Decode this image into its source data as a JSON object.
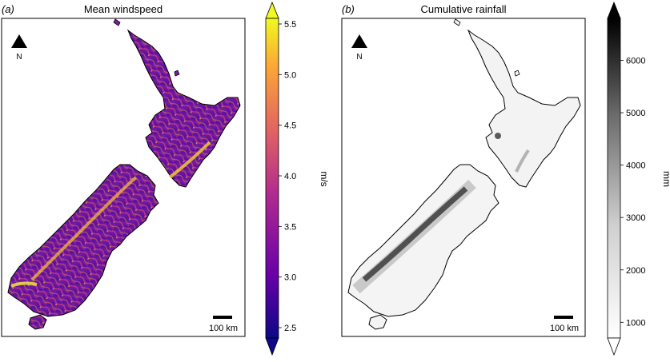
{
  "panel_a": {
    "label": "(a)",
    "title": "Mean windspeed",
    "north_label": "N",
    "scalebar_label": "100 km",
    "colorbar": {
      "unit": "m/s",
      "ticks": [
        "2.5",
        "3.0",
        "3.5",
        "4.0",
        "4.5",
        "5.0",
        "5.5"
      ],
      "range": [
        2.5,
        5.5
      ],
      "colormap": "plasma",
      "colors": [
        "#0d0887",
        "#6a00a8",
        "#b12a90",
        "#e16462",
        "#fca636",
        "#f0f921"
      ]
    }
  },
  "panel_b": {
    "label": "(b)",
    "title": "Cumulative rainfall",
    "north_label": "N",
    "scalebar_label": "100 km",
    "colorbar": {
      "unit": "mm",
      "ticks": [
        "1000",
        "2000",
        "3000",
        "4000",
        "5000",
        "6000"
      ],
      "range": [
        700,
        6800
      ],
      "colormap": "greys",
      "colors": [
        "#ffffff",
        "#000000"
      ]
    }
  }
}
